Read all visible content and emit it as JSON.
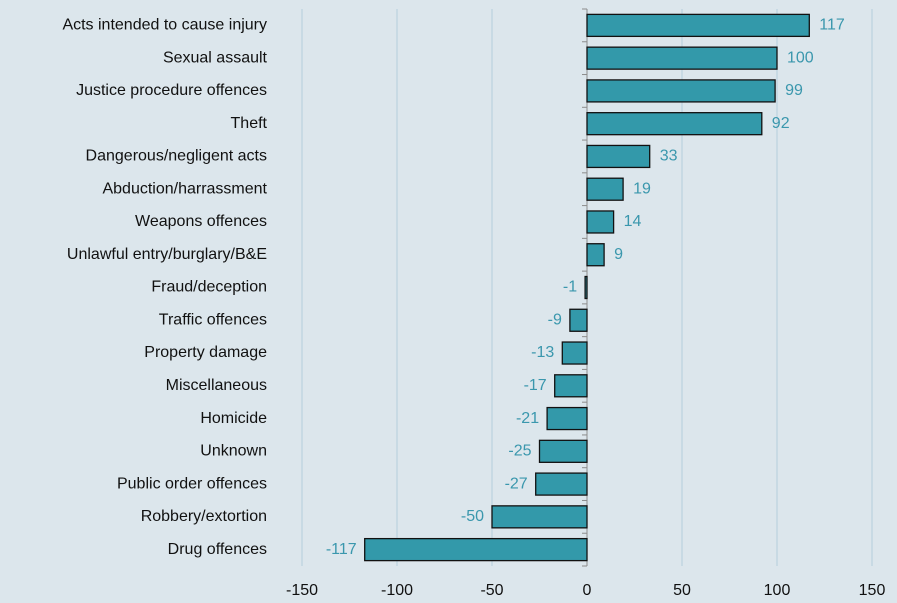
{
  "chart_data": {
    "type": "bar",
    "orientation": "horizontal",
    "categories": [
      "Acts intended to cause injury",
      "Sexual assault",
      "Justice procedure offences",
      "Theft",
      "Dangerous/negligent acts",
      "Abduction/harrassment",
      "Weapons offences",
      "Unlawful entry/burglary/B&E",
      "Fraud/deception",
      "Traffic offences",
      "Property damage",
      "Miscellaneous",
      "Homicide",
      "Unknown",
      "Public order offences",
      "Robbery/extortion",
      "Drug offences"
    ],
    "values": [
      117,
      100,
      99,
      92,
      33,
      19,
      14,
      9,
      -1,
      -9,
      -13,
      -17,
      -21,
      -25,
      -27,
      -50,
      -117
    ],
    "color": "#3399aa",
    "value_label_color": "#3a97ad",
    "xlim": [
      -150,
      150
    ],
    "xticks": [
      -150,
      -100,
      -50,
      0,
      50,
      100,
      150
    ],
    "grid": true
  }
}
